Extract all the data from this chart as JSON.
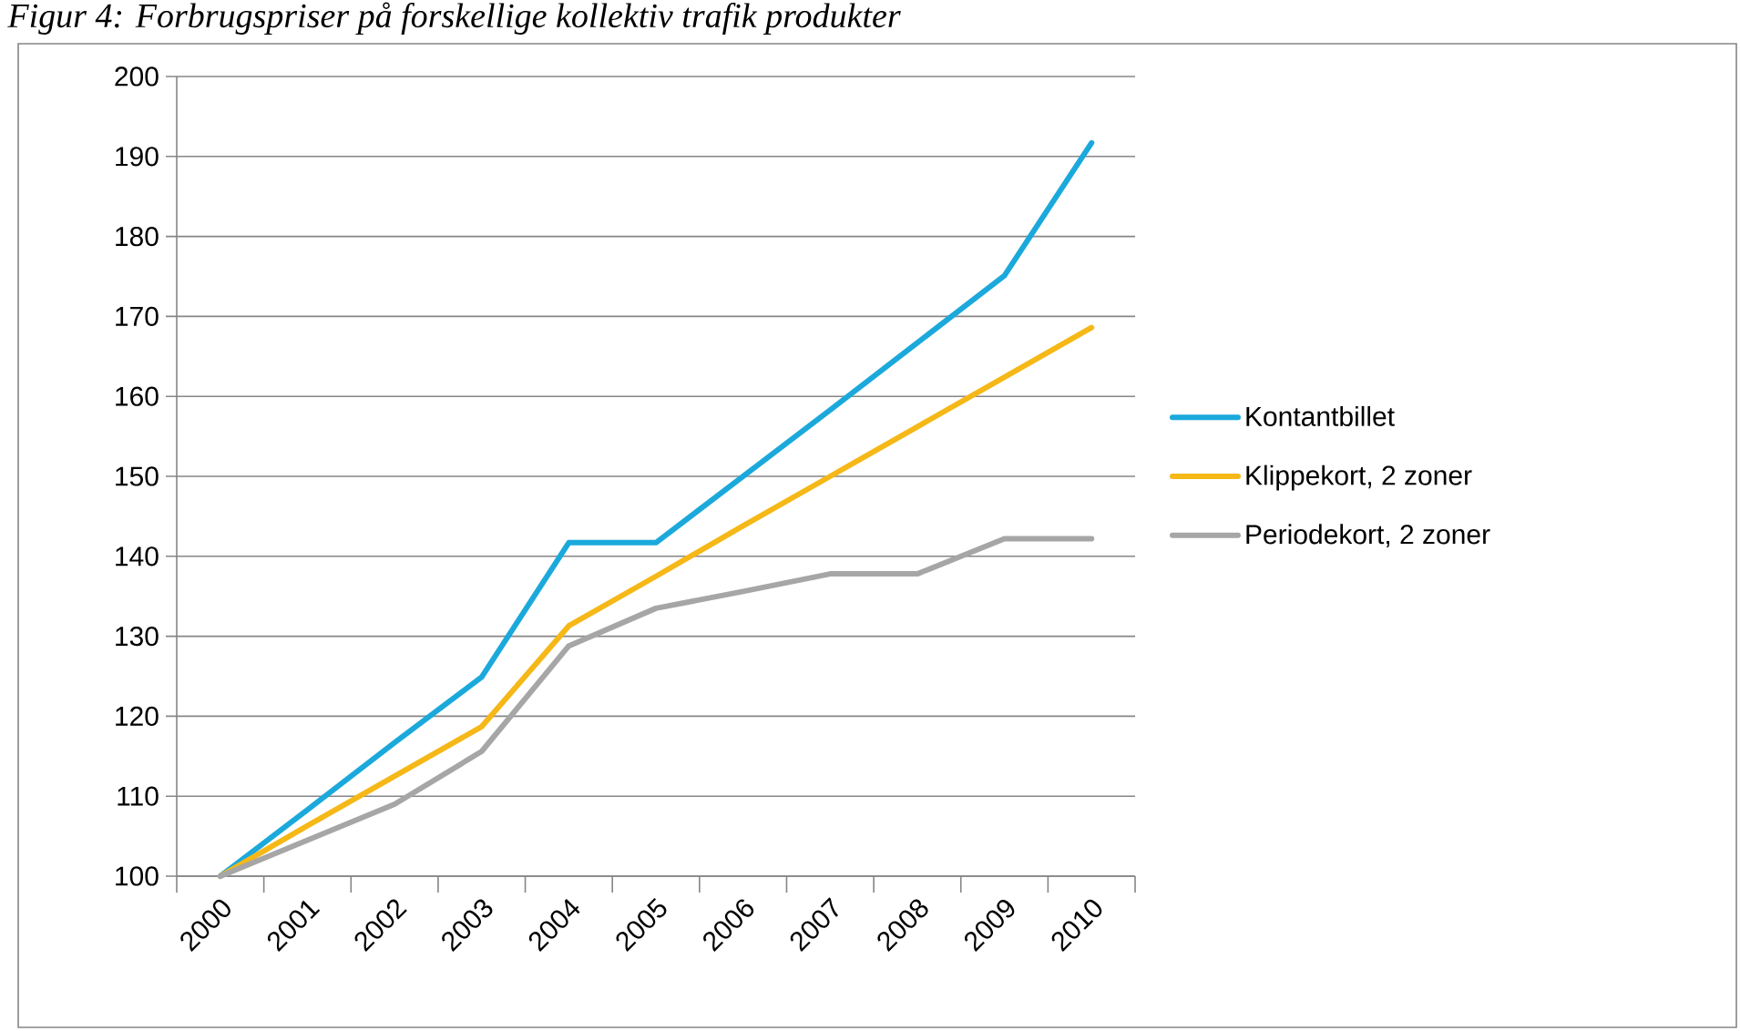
{
  "chart_data": {
    "type": "line",
    "title": "Figur 4: Forbrugspriser på forskellige kollektiv trafik produkter",
    "categories": [
      "2000",
      "2001",
      "2002",
      "2003",
      "2004",
      "2005",
      "2006",
      "2007",
      "2008",
      "2009",
      "2010"
    ],
    "series": [
      {
        "name": "Kontantbillet",
        "color": "#1ba9dc",
        "values": [
          100,
          108.3,
          116.7,
          124.9,
          141.7,
          141.7,
          150,
          158.3,
          166.7,
          175.1,
          191.7
        ]
      },
      {
        "name": "Klippekort, 2 zoner",
        "color": "#f5b817",
        "values": [
          100,
          106.3,
          112.5,
          118.7,
          131.3,
          137.5,
          143.8,
          150,
          156.2,
          162.4,
          168.6
        ]
      },
      {
        "name": "Periodekort, 2 zoner",
        "color": "#a6a6a6",
        "values": [
          100,
          104.5,
          109,
          115.6,
          128.8,
          133.5,
          135.6,
          137.8,
          137.8,
          142.2,
          142.2
        ]
      }
    ],
    "ylim": [
      100,
      200
    ],
    "yticks": [
      100,
      110,
      120,
      130,
      140,
      150,
      160,
      170,
      180,
      190,
      200
    ],
    "grid": "y",
    "legend": "right",
    "marker": "none",
    "line_style": "solid"
  }
}
